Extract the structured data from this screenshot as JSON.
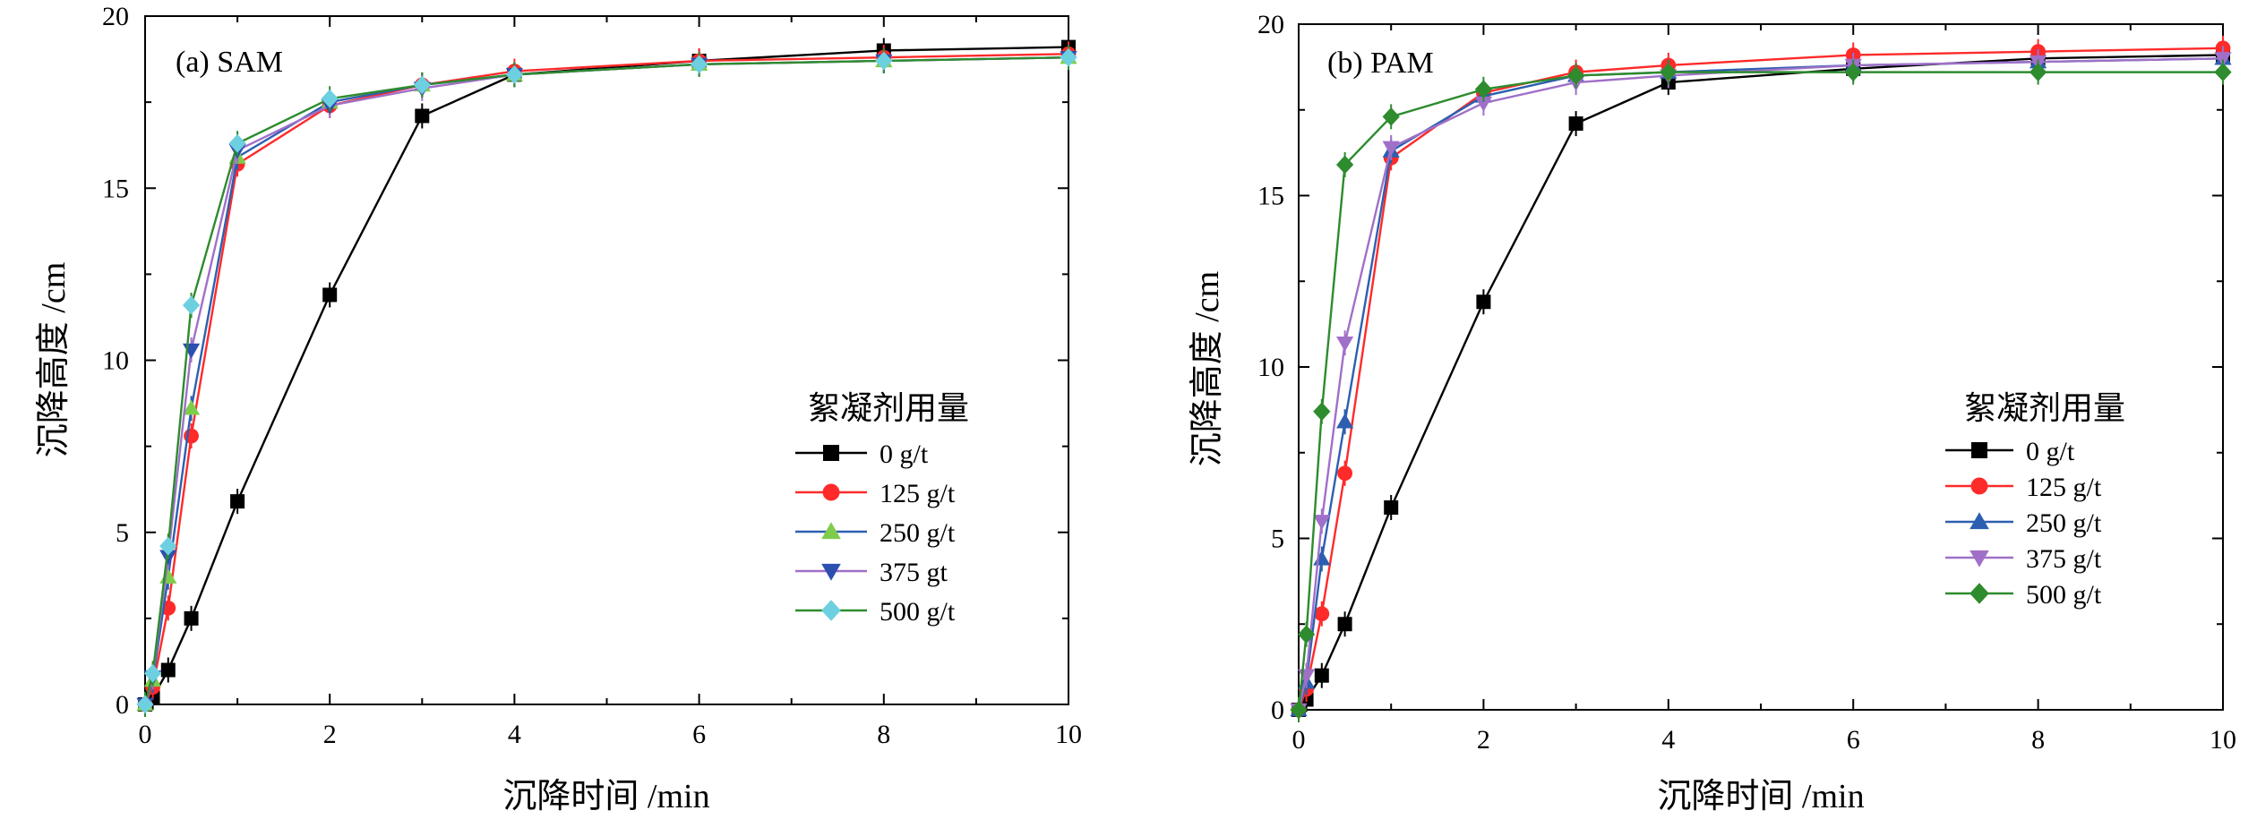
{
  "chart_data": [
    {
      "type": "line",
      "panel_label": "(a) SAM",
      "xlabel": "沉降时间 /min",
      "ylabel": "沉降高度 /cm",
      "xlim": [
        0,
        10
      ],
      "ylim": [
        0,
        20
      ],
      "xticks": [
        "0",
        "2",
        "4",
        "6",
        "8",
        "10"
      ],
      "yticks": [
        "0",
        "5",
        "10",
        "15",
        "20"
      ],
      "legend_title": "絮凝剂用量",
      "legend_position": "right-middle",
      "grid": false,
      "x": [
        0,
        0.083,
        0.25,
        0.5,
        1,
        2,
        3,
        4,
        6,
        8,
        10
      ],
      "series": [
        {
          "name": "0 g/t",
          "color": "#000000",
          "marker": "square",
          "values": [
            0,
            0.2,
            1.0,
            2.5,
            5.9,
            11.9,
            17.1,
            18.3,
            18.7,
            19.0,
            19.1
          ]
        },
        {
          "name": "125 g/t",
          "color": "#ff2a2a",
          "marker": "circle",
          "values": [
            0,
            0.5,
            2.8,
            7.8,
            15.7,
            17.4,
            18.0,
            18.4,
            18.7,
            18.8,
            18.9
          ]
        },
        {
          "name": "250 g/t",
          "color": "#2d5fb0",
          "marker": "triangle-up",
          "marker_color": "#7dcd4b",
          "values": [
            0,
            0.7,
            3.7,
            8.6,
            15.9,
            17.5,
            18.0,
            18.3,
            18.6,
            18.7,
            18.8
          ]
        },
        {
          "name": "375 gt",
          "color": "#a070c8",
          "marker": "triangle-down",
          "marker_color": "#2d4fb0",
          "values": [
            0,
            0.8,
            4.3,
            10.3,
            16.1,
            17.4,
            17.9,
            18.3,
            18.6,
            18.7,
            18.8
          ]
        },
        {
          "name": "500 g/t",
          "color": "#2e8b2e",
          "marker": "diamond",
          "marker_color": "#6cd0e0",
          "values": [
            0,
            0.9,
            4.6,
            11.6,
            16.3,
            17.6,
            18.0,
            18.3,
            18.6,
            18.7,
            18.8
          ]
        }
      ]
    },
    {
      "type": "line",
      "panel_label": "(b) PAM",
      "xlabel": "沉降时间 /min",
      "ylabel": "沉降高度 /cm",
      "xlim": [
        0,
        10
      ],
      "ylim": [
        0,
        20
      ],
      "xticks": [
        "0",
        "2",
        "4",
        "6",
        "8",
        "10"
      ],
      "yticks": [
        "0",
        "5",
        "10",
        "15",
        "20"
      ],
      "legend_title": "絮凝剂用量",
      "legend_position": "right-middle",
      "grid": false,
      "x": [
        0,
        0.083,
        0.25,
        0.5,
        1,
        2,
        3,
        4,
        6,
        8,
        10
      ],
      "series": [
        {
          "name": "0 g/t",
          "color": "#000000",
          "marker": "square",
          "values": [
            0,
            0.3,
            1.0,
            2.5,
            5.9,
            11.9,
            17.1,
            18.3,
            18.7,
            19.0,
            19.1
          ]
        },
        {
          "name": "125 g/t",
          "color": "#ff2a2a",
          "marker": "circle",
          "values": [
            0,
            0.6,
            2.8,
            6.9,
            16.1,
            18.0,
            18.6,
            18.8,
            19.1,
            19.2,
            19.3
          ]
        },
        {
          "name": "250 g/t",
          "color": "#2d5fb0",
          "marker": "triangle-up",
          "values": [
            0,
            0.8,
            4.4,
            8.4,
            16.3,
            17.9,
            18.5,
            18.6,
            18.8,
            18.9,
            19.0
          ]
        },
        {
          "name": "375 g/t",
          "color": "#a070c8",
          "marker": "triangle-down",
          "values": [
            0,
            1.0,
            5.5,
            10.7,
            16.4,
            17.7,
            18.3,
            18.5,
            18.8,
            18.9,
            19.0
          ]
        },
        {
          "name": "500 g/t",
          "color": "#2e8b2e",
          "marker": "diamond",
          "values": [
            0,
            2.2,
            8.7,
            15.9,
            17.3,
            18.1,
            18.5,
            18.6,
            18.6,
            18.6,
            18.6
          ]
        }
      ]
    }
  ]
}
